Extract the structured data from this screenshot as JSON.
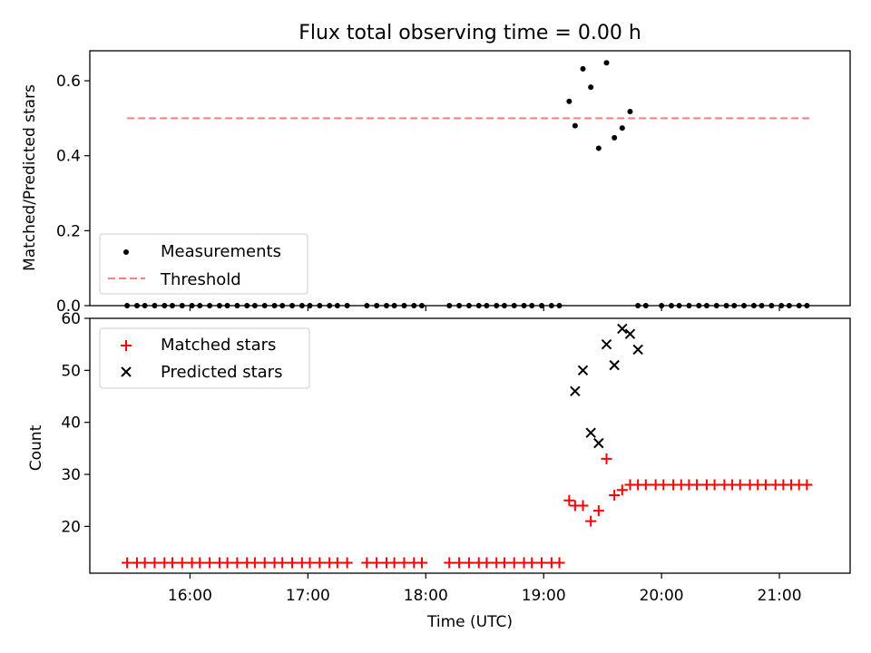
{
  "title": "Flux total observing time = 0.00 h",
  "colors": {
    "measurement": "#000000",
    "threshold": "#ff0000",
    "matched": "#ff0000",
    "predicted": "#000000"
  },
  "chart_data": [
    {
      "type": "scatter",
      "ylabel": "Matched/Predicted stars",
      "xlabel": "",
      "xlim": [
        "15:09",
        "21:36"
      ],
      "ylim": [
        0,
        0.68
      ],
      "yticks": [
        "0.0",
        "0.2",
        "0.4",
        "0.6"
      ],
      "grid": false,
      "legend": {
        "position": "lower-left",
        "entries": [
          "Measurements",
          "Threshold"
        ]
      },
      "threshold": {
        "name": "Threshold",
        "y": 0.5,
        "x": [
          "15:28",
          "21:16"
        ]
      },
      "series": [
        {
          "name": "Measurements",
          "marker": "dot",
          "x": [
            "15:28",
            "15:33",
            "15:37",
            "15:42",
            "15:47",
            "15:51",
            "15:56",
            "16:01",
            "16:05",
            "16:10",
            "16:15",
            "16:19",
            "16:24",
            "16:29",
            "16:33",
            "16:38",
            "16:43",
            "16:47",
            "16:52",
            "16:57",
            "17:01",
            "17:06",
            "17:11",
            "17:15",
            "17:20",
            "17:30",
            "17:35",
            "17:40",
            "17:44",
            "17:49",
            "17:54",
            "17:58",
            "18:12",
            "18:17",
            "18:22",
            "18:27",
            "18:31",
            "18:36",
            "18:40",
            "18:45",
            "18:50",
            "18:54",
            "18:59",
            "19:04",
            "19:08",
            "19:13",
            "19:16",
            "19:20",
            "19:24",
            "19:28",
            "19:32",
            "19:36",
            "19:40",
            "19:44",
            "19:48",
            "19:52",
            "20:00",
            "20:05",
            "20:09",
            "20:14",
            "20:19",
            "20:23",
            "20:28",
            "20:33",
            "20:37",
            "20:42",
            "20:47",
            "20:51",
            "20:56",
            "21:01",
            "21:05",
            "21:10",
            "21:14"
          ],
          "y": [
            0,
            0,
            0,
            0,
            0,
            0,
            0,
            0,
            0,
            0,
            0,
            0,
            0,
            0,
            0,
            0,
            0,
            0,
            0,
            0,
            0,
            0,
            0,
            0,
            0,
            0,
            0,
            0,
            0,
            0,
            0,
            0,
            0,
            0,
            0,
            0,
            0,
            0,
            0,
            0,
            0,
            0,
            0,
            0,
            0,
            0.545,
            0.48,
            0.632,
            0.583,
            0.42,
            0.648,
            0.448,
            0.474,
            0.518,
            0,
            0,
            0,
            0,
            0,
            0,
            0,
            0,
            0,
            0,
            0,
            0,
            0,
            0,
            0,
            0,
            0,
            0,
            0
          ]
        }
      ]
    },
    {
      "type": "scatter",
      "ylabel": "Count",
      "xlabel": "Time (UTC)",
      "xlim": [
        "15:09",
        "21:36"
      ],
      "ylim": [
        11,
        60
      ],
      "xticks": [
        "16:00",
        "17:00",
        "18:00",
        "19:00",
        "20:00",
        "21:00"
      ],
      "yticks": [
        "20",
        "30",
        "40",
        "50",
        "60"
      ],
      "grid": false,
      "legend": {
        "position": "upper-left",
        "entries": [
          "Matched stars",
          "Predicted stars"
        ]
      },
      "series": [
        {
          "name": "Matched stars",
          "marker": "plus",
          "x": [
            "15:28",
            "15:33",
            "15:37",
            "15:42",
            "15:47",
            "15:51",
            "15:56",
            "16:01",
            "16:05",
            "16:10",
            "16:15",
            "16:19",
            "16:24",
            "16:29",
            "16:33",
            "16:38",
            "16:43",
            "16:47",
            "16:52",
            "16:57",
            "17:01",
            "17:06",
            "17:11",
            "17:15",
            "17:20",
            "17:30",
            "17:35",
            "17:40",
            "17:44",
            "17:49",
            "17:54",
            "17:58",
            "18:12",
            "18:17",
            "18:22",
            "18:27",
            "18:31",
            "18:36",
            "18:40",
            "18:45",
            "18:50",
            "18:54",
            "18:59",
            "19:04",
            "19:08",
            "19:13",
            "19:16",
            "19:20",
            "19:24",
            "19:28",
            "19:32",
            "19:36",
            "19:40",
            "19:44",
            "19:48",
            "19:52",
            "19:57",
            "20:01",
            "20:06",
            "20:10",
            "20:14",
            "20:18",
            "20:23",
            "20:27",
            "20:32",
            "20:36",
            "20:40",
            "20:45",
            "20:49",
            "20:53",
            "20:58",
            "21:02",
            "21:06",
            "21:10",
            "21:14"
          ],
          "y": [
            13,
            13,
            13,
            13,
            13,
            13,
            13,
            13,
            13,
            13,
            13,
            13,
            13,
            13,
            13,
            13,
            13,
            13,
            13,
            13,
            13,
            13,
            13,
            13,
            13,
            13,
            13,
            13,
            13,
            13,
            13,
            13,
            13,
            13,
            13,
            13,
            13,
            13,
            13,
            13,
            13,
            13,
            13,
            13,
            13,
            25,
            24,
            24,
            21,
            23,
            33,
            26,
            27,
            28,
            28,
            28,
            28,
            28,
            28,
            28,
            28,
            28,
            28,
            28,
            28,
            28,
            28,
            28,
            28,
            28,
            28,
            28,
            28,
            28,
            28
          ]
        },
        {
          "name": "Predicted stars",
          "marker": "x",
          "x": [
            "19:16",
            "19:20",
            "19:24",
            "19:28",
            "19:32",
            "19:36",
            "19:40",
            "19:44",
            "19:48"
          ],
          "y": [
            46,
            50,
            38,
            36,
            55,
            51,
            58,
            57,
            54
          ]
        }
      ]
    }
  ]
}
